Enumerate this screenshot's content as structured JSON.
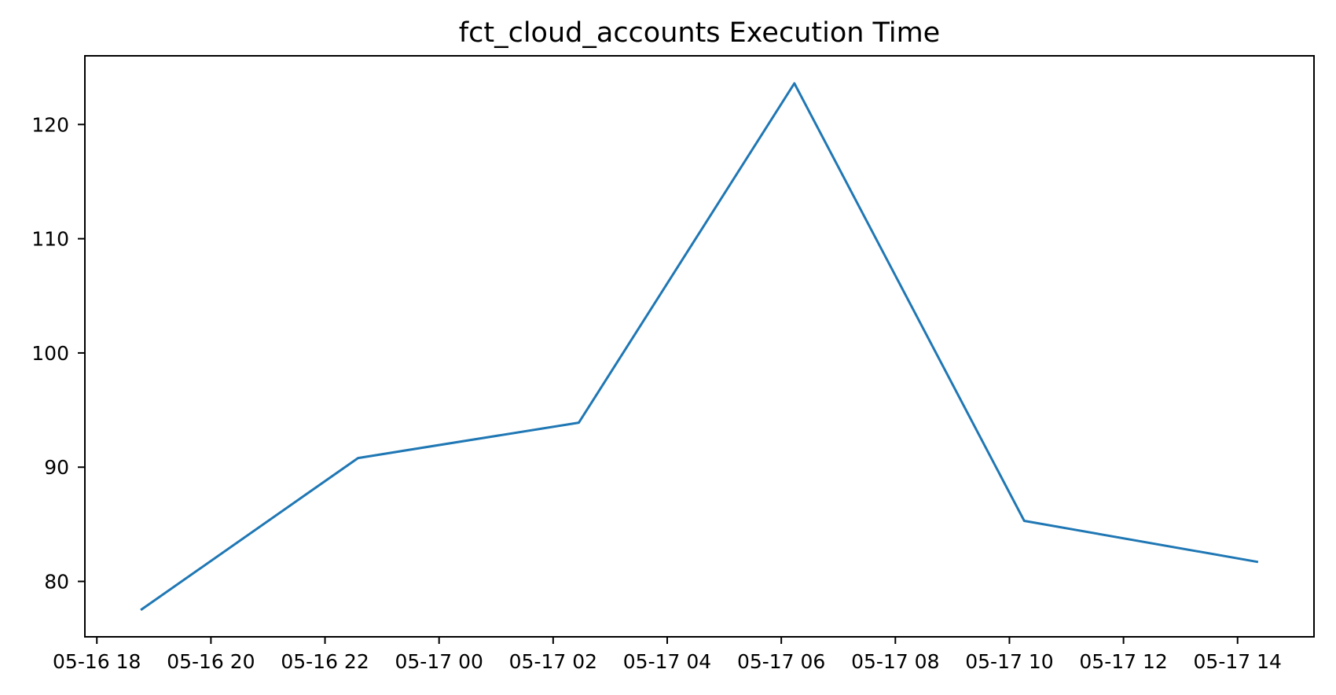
{
  "chart_data": {
    "type": "line",
    "title": "fct_cloud_accounts Execution Time",
    "xlabel": "",
    "ylabel": "",
    "x_tick_labels": [
      "05-16 18",
      "05-16 20",
      "05-16 22",
      "05-17 00",
      "05-17 02",
      "05-17 04",
      "05-17 06",
      "05-17 08",
      "05-17 10",
      "05-17 12",
      "05-17 14"
    ],
    "x_tick_offsets_hours": [
      0,
      2,
      4,
      6,
      8,
      10,
      12,
      14,
      16,
      18,
      20
    ],
    "x_unit": "hours since 05-16 18:00",
    "y_ticks": [
      80,
      90,
      100,
      110,
      120
    ],
    "y_tick_labels": [
      "80",
      "90",
      "100",
      "110",
      "120"
    ],
    "xlim_offset_hours": [
      -0.21,
      21.34
    ],
    "ylim": [
      75.15,
      126.01
    ],
    "grid": false,
    "legend": "none",
    "series": [
      {
        "name": "fct_cloud_accounts execution time",
        "color": "#1f77b4",
        "x_hours": [
          0.77,
          4.58,
          8.45,
          12.23,
          16.26,
          20.36
        ],
        "values": [
          77.5,
          90.8,
          93.9,
          123.6,
          85.3,
          81.7
        ]
      }
    ]
  },
  "style": {
    "background": "#ffffff",
    "axis_color": "#000000",
    "line_color": "#1f77b4"
  }
}
